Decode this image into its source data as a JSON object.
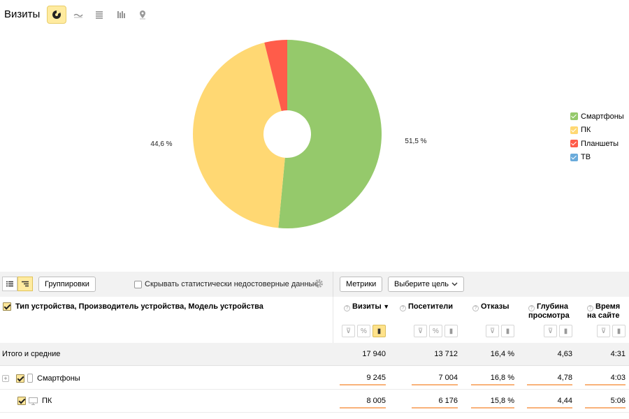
{
  "header": {
    "title": "Визиты"
  },
  "view_buttons": [
    {
      "icon": "pie-chart-icon",
      "active": true
    },
    {
      "icon": "line-chart-icon",
      "active": false
    },
    {
      "icon": "area-chart-icon",
      "active": false
    },
    {
      "icon": "bar-chart-icon",
      "active": false
    },
    {
      "icon": "map-pin-icon",
      "active": false
    }
  ],
  "chart_data": {
    "type": "pie",
    "donut": true,
    "slices": [
      {
        "label": "Смартфоны",
        "value": 51.5,
        "color": "#95c96b"
      },
      {
        "label": "ПК",
        "value": 44.6,
        "color": "#ffd873"
      },
      {
        "label": "Планшеты",
        "value": 3.9,
        "color": "#ff5c4a"
      },
      {
        "label": "ТВ",
        "value": 0.0,
        "color": "#6aabdb"
      }
    ],
    "data_labels": [
      "51,5 %",
      "44,6 %"
    ],
    "legend_position": "right"
  },
  "legend": [
    {
      "label": "Смартфоны",
      "color": "#95c96b"
    },
    {
      "label": "ПК",
      "color": "#ffd873"
    },
    {
      "label": "Планшеты",
      "color": "#ff5c4a"
    },
    {
      "label": "ТВ",
      "color": "#6aabdb"
    }
  ],
  "toolbar": {
    "groupings_label": "Группировки",
    "hide_unreliable_label": "Скрывать статистически недостоверные данные",
    "metrics_label": "Метрики",
    "goal_label": "Выберите цель"
  },
  "table": {
    "dimension_header": "Тип устройства, Производитель устройства, Модель устройства",
    "columns": [
      {
        "line1": "Визиты",
        "line2": "",
        "sorted": "▼",
        "tools": [
          "filter",
          "percent",
          "bars"
        ],
        "active_tool": 2
      },
      {
        "line1": "Посетители",
        "line2": "",
        "sorted": "",
        "tools": [
          "filter",
          "percent",
          "bars"
        ],
        "active_tool": -1
      },
      {
        "line1": "Отказы",
        "line2": "",
        "sorted": "",
        "tools": [
          "filter",
          "bars"
        ],
        "active_tool": -1
      },
      {
        "line1": "Глубина",
        "line2": "просмотра",
        "sorted": "",
        "tools": [
          "filter",
          "bars"
        ],
        "active_tool": -1
      },
      {
        "line1": "Время",
        "line2": "на сайте",
        "sorted": "",
        "tools": [
          "filter",
          "bars"
        ],
        "active_tool": -1
      }
    ],
    "total": {
      "label": "Итого и средние",
      "values": [
        "17 940",
        "13 712",
        "16,4 %",
        "4,63",
        "4:31"
      ]
    },
    "rows": [
      {
        "label": "Смартфоны",
        "icon": "smartphone-icon",
        "values": [
          "9 245",
          "7 004",
          "16,8 %",
          "4,78",
          "4:03"
        ]
      },
      {
        "label": "ПК",
        "icon": "desktop-icon",
        "values": [
          "8 005",
          "6 176",
          "15,8 %",
          "4,44",
          "5:06"
        ]
      }
    ]
  }
}
